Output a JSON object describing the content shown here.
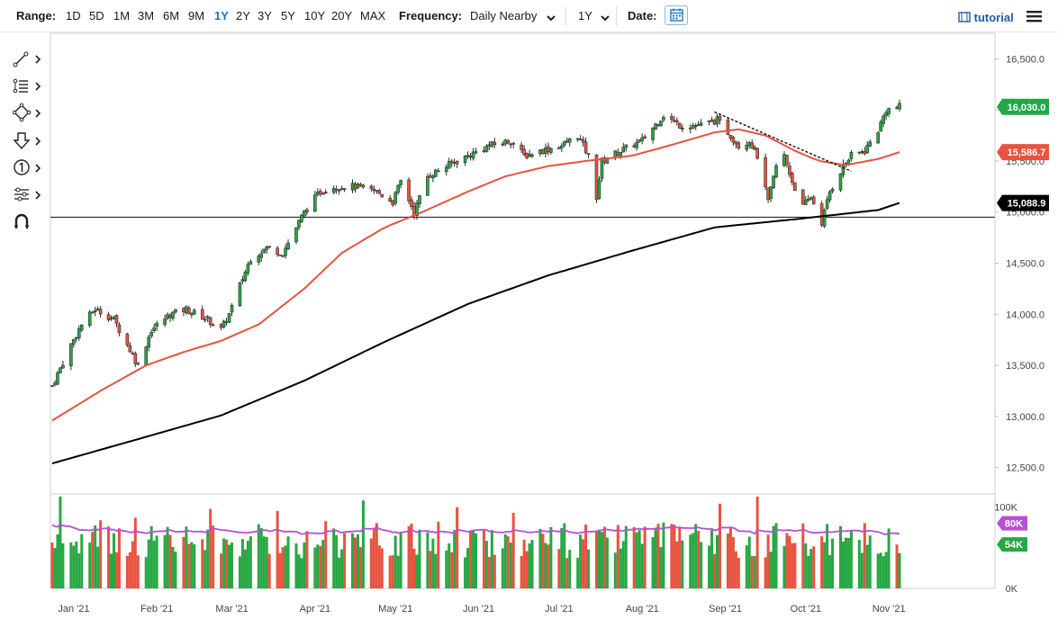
{
  "toolbar": {
    "range_label": "Range:",
    "ranges": [
      "1D",
      "5D",
      "1M",
      "3M",
      "6M",
      "9M",
      "1Y",
      "2Y",
      "3Y",
      "5Y",
      "10Y",
      "20Y",
      "MAX"
    ],
    "active_range": "1Y",
    "frequency_label": "Frequency:",
    "frequency_value": "Daily Nearby",
    "period_value": "1Y",
    "date_label": "Date:",
    "tutorial_label": "tutorial"
  },
  "tools": [
    {
      "icon": "trendline-icon"
    },
    {
      "icon": "fibonacci-icon"
    },
    {
      "icon": "shapes-icon"
    },
    {
      "icon": "arrow-marker-icon"
    },
    {
      "icon": "numbered-marker-icon"
    },
    {
      "icon": "settings-sliders-icon"
    },
    {
      "icon": "magnet-icon"
    }
  ],
  "colors": {
    "up": "#27a844",
    "down": "#e8533f",
    "ma_fast": "#e8533f",
    "ma_slow": "#000000",
    "vol_ma": "#b84fd6",
    "last_price_badge": "#21a84a",
    "grid": "#e6e6e6",
    "accent": "#1e73be"
  },
  "chart_data": {
    "type": "candlestick",
    "instrument_note": "",
    "x": {
      "tick_labels": [
        "Jan '21",
        "Feb '21",
        "Mar '21",
        "Apr '21",
        "May '21",
        "Jun '21",
        "Jul '21",
        "Aug '21",
        "Sep '21",
        "Oct '21",
        "Nov '21"
      ]
    },
    "price_axis": {
      "range": [
        12250,
        16750
      ],
      "tick_labels": [
        "12,500.0",
        "13,000.0",
        "13,500.0",
        "14,000.0",
        "14,500.0",
        "15,000.0",
        "15,500.0",
        "16,000.0",
        "16,500.0"
      ],
      "ticks": [
        12500,
        13000,
        13500,
        14000,
        14500,
        15000,
        15500,
        16000,
        16500
      ]
    },
    "badges": [
      {
        "label": "16,030.0",
        "value": 16030,
        "kind": "last"
      },
      {
        "label": "15,586.7",
        "value": 15586.7,
        "kind": "ma_fast"
      },
      {
        "label": "15,088.9",
        "value": 15088.9,
        "kind": "ma_slow"
      }
    ],
    "horizontal_line": 14950,
    "price_anchors": [
      [
        "2020-12-28",
        13300
      ],
      [
        "2021-01-04",
        13700
      ],
      [
        "2021-01-08",
        13900
      ],
      [
        "2021-01-13",
        14050
      ],
      [
        "2021-01-20",
        13950
      ],
      [
        "2021-01-26",
        13650
      ],
      [
        "2021-01-29",
        13500
      ],
      [
        "2021-02-03",
        13850
      ],
      [
        "2021-02-10",
        14000
      ],
      [
        "2021-02-16",
        14050
      ],
      [
        "2021-02-24",
        13950
      ],
      [
        "2021-03-01",
        13850
      ],
      [
        "2021-03-04",
        14000
      ],
      [
        "2021-03-09",
        14350
      ],
      [
        "2021-03-12",
        14550
      ],
      [
        "2021-03-18",
        14650
      ],
      [
        "2021-03-24",
        14600
      ],
      [
        "2021-03-26",
        14700
      ],
      [
        "2021-04-01",
        15000
      ],
      [
        "2021-04-07",
        15200
      ],
      [
        "2021-04-12",
        15250
      ],
      [
        "2021-04-20",
        15250
      ],
      [
        "2021-04-28",
        15200
      ],
      [
        "2021-05-04",
        15100
      ],
      [
        "2021-05-07",
        15300
      ],
      [
        "2021-05-12",
        15000
      ],
      [
        "2021-05-17",
        15350
      ],
      [
        "2021-05-24",
        15450
      ],
      [
        "2021-06-01",
        15550
      ],
      [
        "2021-06-09",
        15650
      ],
      [
        "2021-06-17",
        15700
      ],
      [
        "2021-06-22",
        15550
      ],
      [
        "2021-06-28",
        15600
      ],
      [
        "2021-07-06",
        15650
      ],
      [
        "2021-07-12",
        15750
      ],
      [
        "2021-07-16",
        15550
      ],
      [
        "2021-07-19",
        15150
      ],
      [
        "2021-07-21",
        15500
      ],
      [
        "2021-07-28",
        15600
      ],
      [
        "2021-08-05",
        15700
      ],
      [
        "2021-08-13",
        15950
      ],
      [
        "2021-08-19",
        15850
      ],
      [
        "2021-08-27",
        15850
      ],
      [
        "2021-09-02",
        15900
      ],
      [
        "2021-09-07",
        15750
      ],
      [
        "2021-09-10",
        15650
      ],
      [
        "2021-09-14",
        15700
      ],
      [
        "2021-09-17",
        15550
      ],
      [
        "2021-09-21",
        15100
      ],
      [
        "2021-09-24",
        15450
      ],
      [
        "2021-09-27",
        15550
      ],
      [
        "2021-09-30",
        15300
      ],
      [
        "2021-10-04",
        15050
      ],
      [
        "2021-10-07",
        15150
      ],
      [
        "2021-10-11",
        14900
      ],
      [
        "2021-10-14",
        15200
      ],
      [
        "2021-10-19",
        15450
      ],
      [
        "2021-10-22",
        15550
      ],
      [
        "2021-10-27",
        15600
      ],
      [
        "2021-11-01",
        15800
      ],
      [
        "2021-11-04",
        16000
      ],
      [
        "2021-11-09",
        16030
      ]
    ],
    "ma_fast_anchors": [
      [
        "2020-12-28",
        12960
      ],
      [
        "2021-01-15",
        13250
      ],
      [
        "2021-02-01",
        13500
      ],
      [
        "2021-02-15",
        13630
      ],
      [
        "2021-03-01",
        13740
      ],
      [
        "2021-03-15",
        13900
      ],
      [
        "2021-04-01",
        14250
      ],
      [
        "2021-04-15",
        14600
      ],
      [
        "2021-05-01",
        14850
      ],
      [
        "2021-05-15",
        15000
      ],
      [
        "2021-06-01",
        15200
      ],
      [
        "2021-06-15",
        15350
      ],
      [
        "2021-07-01",
        15450
      ],
      [
        "2021-07-15",
        15500
      ],
      [
        "2021-08-01",
        15550
      ],
      [
        "2021-08-15",
        15650
      ],
      [
        "2021-09-01",
        15780
      ],
      [
        "2021-09-10",
        15810
      ],
      [
        "2021-09-20",
        15750
      ],
      [
        "2021-10-01",
        15600
      ],
      [
        "2021-10-10",
        15500
      ],
      [
        "2021-10-20",
        15460
      ],
      [
        "2021-11-01",
        15520
      ],
      [
        "2021-11-09",
        15587
      ]
    ],
    "ma_slow_anchors": [
      [
        "2020-12-28",
        12540
      ],
      [
        "2021-02-01",
        12800
      ],
      [
        "2021-03-01",
        13010
      ],
      [
        "2021-04-01",
        13350
      ],
      [
        "2021-05-01",
        13730
      ],
      [
        "2021-06-01",
        14100
      ],
      [
        "2021-07-01",
        14380
      ],
      [
        "2021-08-01",
        14620
      ],
      [
        "2021-09-01",
        14850
      ],
      [
        "2021-10-01",
        14930
      ],
      [
        "2021-11-01",
        15020
      ],
      [
        "2021-11-09",
        15089
      ]
    ],
    "trendline": {
      "from": [
        "2021-09-01",
        15980
      ],
      "to": [
        "2021-10-22",
        15400
      ]
    },
    "volume": {
      "axis_labels": [
        "100K",
        "0K"
      ],
      "axis_values": [
        100000,
        0
      ],
      "range": [
        0,
        115000
      ],
      "badges": [
        {
          "label": "80K",
          "value": 80000,
          "kind": "vol_ma"
        },
        {
          "label": "54K",
          "value": 54000,
          "kind": "last_volume"
        }
      ],
      "volume_ma_level": 80000,
      "typical_volume": 62000
    }
  }
}
